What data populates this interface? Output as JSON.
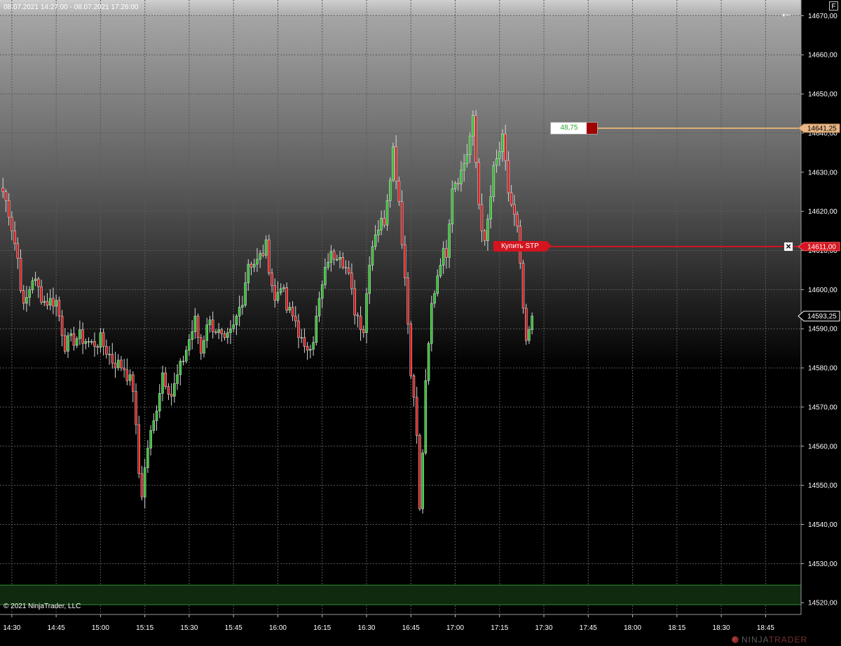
{
  "header": {
    "date_range": "08.07.2021 14:27:00 - 08.07.2021 17:26:00",
    "back_icon": "arrow-left-icon",
    "f_badge": "F"
  },
  "footer": {
    "copyright": "© 2021 NinjaTrader, LLC",
    "brand_ninja": "NINJA",
    "brand_trader": "TRADER"
  },
  "colors": {
    "up_candle": "#2fbf2f",
    "down_candle": "#d41a1a",
    "wick": "#d8d8d8",
    "grid": "#5a5a5a",
    "target_line": "#e0b078",
    "stop_line": "#d4141f",
    "zone_fill": "#0f2a0f",
    "zone_border": "#2f8f2f"
  },
  "order_target": {
    "price": 14641.25,
    "price_label": "14641,25",
    "pnl_label": "48,75"
  },
  "order_stop": {
    "price": 14611.0,
    "price_label": "14611,00",
    "label": "Купить STP"
  },
  "last_price": {
    "price": 14593.25,
    "label": "14593,25"
  },
  "chart_data": {
    "type": "candlestick",
    "title": "",
    "xlabel": "",
    "ylabel": "",
    "ylim": [
      14517,
      14674
    ],
    "y_ticks": [
      "14520,00",
      "14530,00",
      "14540,00",
      "14550,00",
      "14560,00",
      "14570,00",
      "14580,00",
      "14590,00",
      "14600,00",
      "14610,00",
      "14620,00",
      "14630,00",
      "14640,00",
      "14650,00",
      "14660,00",
      "14670,00"
    ],
    "x_ticks": [
      "14:30",
      "14:45",
      "15:00",
      "15:15",
      "15:30",
      "15:45",
      "16:00",
      "16:15",
      "16:30",
      "16:45",
      "17:00",
      "17:15",
      "17:30",
      "17:45",
      "18:00",
      "18:15",
      "18:30",
      "18:45"
    ],
    "x_range": [
      "14:26",
      "18:57"
    ],
    "grid": true,
    "highlight_zone": [
      14519.5,
      14524.5
    ],
    "candle_interval_minutes": 1,
    "first_candle_time": "14:27",
    "close_keypoints": [
      [
        "14:27",
        14625
      ],
      [
        "14:29",
        14620
      ],
      [
        "14:32",
        14608
      ],
      [
        "14:34",
        14595
      ],
      [
        "14:37",
        14603
      ],
      [
        "14:41",
        14597
      ],
      [
        "14:45",
        14597
      ],
      [
        "14:48",
        14586
      ],
      [
        "14:53",
        14588
      ],
      [
        "14:57",
        14586
      ],
      [
        "15:00",
        14587
      ],
      [
        "15:04",
        14582
      ],
      [
        "15:08",
        14580
      ],
      [
        "15:11",
        14575
      ],
      [
        "15:13",
        14553
      ],
      [
        "15:14",
        14548
      ],
      [
        "15:16",
        14560
      ],
      [
        "15:18",
        14566
      ],
      [
        "15:21",
        14579
      ],
      [
        "15:24",
        14573
      ],
      [
        "15:27",
        14580
      ],
      [
        "15:32",
        14592
      ],
      [
        "15:34",
        14584
      ],
      [
        "15:36",
        14592
      ],
      [
        "15:39",
        14590
      ],
      [
        "15:42",
        14586
      ],
      [
        "15:45",
        14590
      ],
      [
        "15:48",
        14598
      ],
      [
        "15:50",
        14607
      ],
      [
        "15:53",
        14607
      ],
      [
        "15:56",
        14611
      ],
      [
        "15:59",
        14597
      ],
      [
        "16:01",
        14602
      ],
      [
        "16:03",
        14595
      ],
      [
        "16:06",
        14592
      ],
      [
        "16:09",
        14584
      ],
      [
        "16:12",
        14588
      ],
      [
        "16:14",
        14597
      ],
      [
        "16:17",
        14608
      ],
      [
        "16:21",
        14610
      ],
      [
        "16:24",
        14603
      ],
      [
        "16:26",
        14595
      ],
      [
        "16:29",
        14590
      ],
      [
        "16:31",
        14608
      ],
      [
        "16:33",
        14615
      ],
      [
        "16:36",
        14618
      ],
      [
        "16:39",
        14636
      ],
      [
        "16:41",
        14623
      ],
      [
        "16:43",
        14603
      ],
      [
        "16:45",
        14580
      ],
      [
        "16:47",
        14563
      ],
      [
        "16:48",
        14543
      ],
      [
        "16:50",
        14575
      ],
      [
        "16:52",
        14596
      ],
      [
        "16:55",
        14608
      ],
      [
        "16:57",
        14610
      ],
      [
        "16:59",
        14627
      ],
      [
        "17:02",
        14630
      ],
      [
        "17:04",
        14635
      ],
      [
        "17:06",
        14643
      ],
      [
        "17:08",
        14622
      ],
      [
        "17:10",
        14611
      ],
      [
        "17:13",
        14630
      ],
      [
        "17:16",
        14638
      ],
      [
        "17:18",
        14625
      ],
      [
        "17:21",
        14615
      ],
      [
        "17:23",
        14595
      ],
      [
        "17:24",
        14585
      ],
      [
        "17:26",
        14593.25
      ]
    ]
  }
}
